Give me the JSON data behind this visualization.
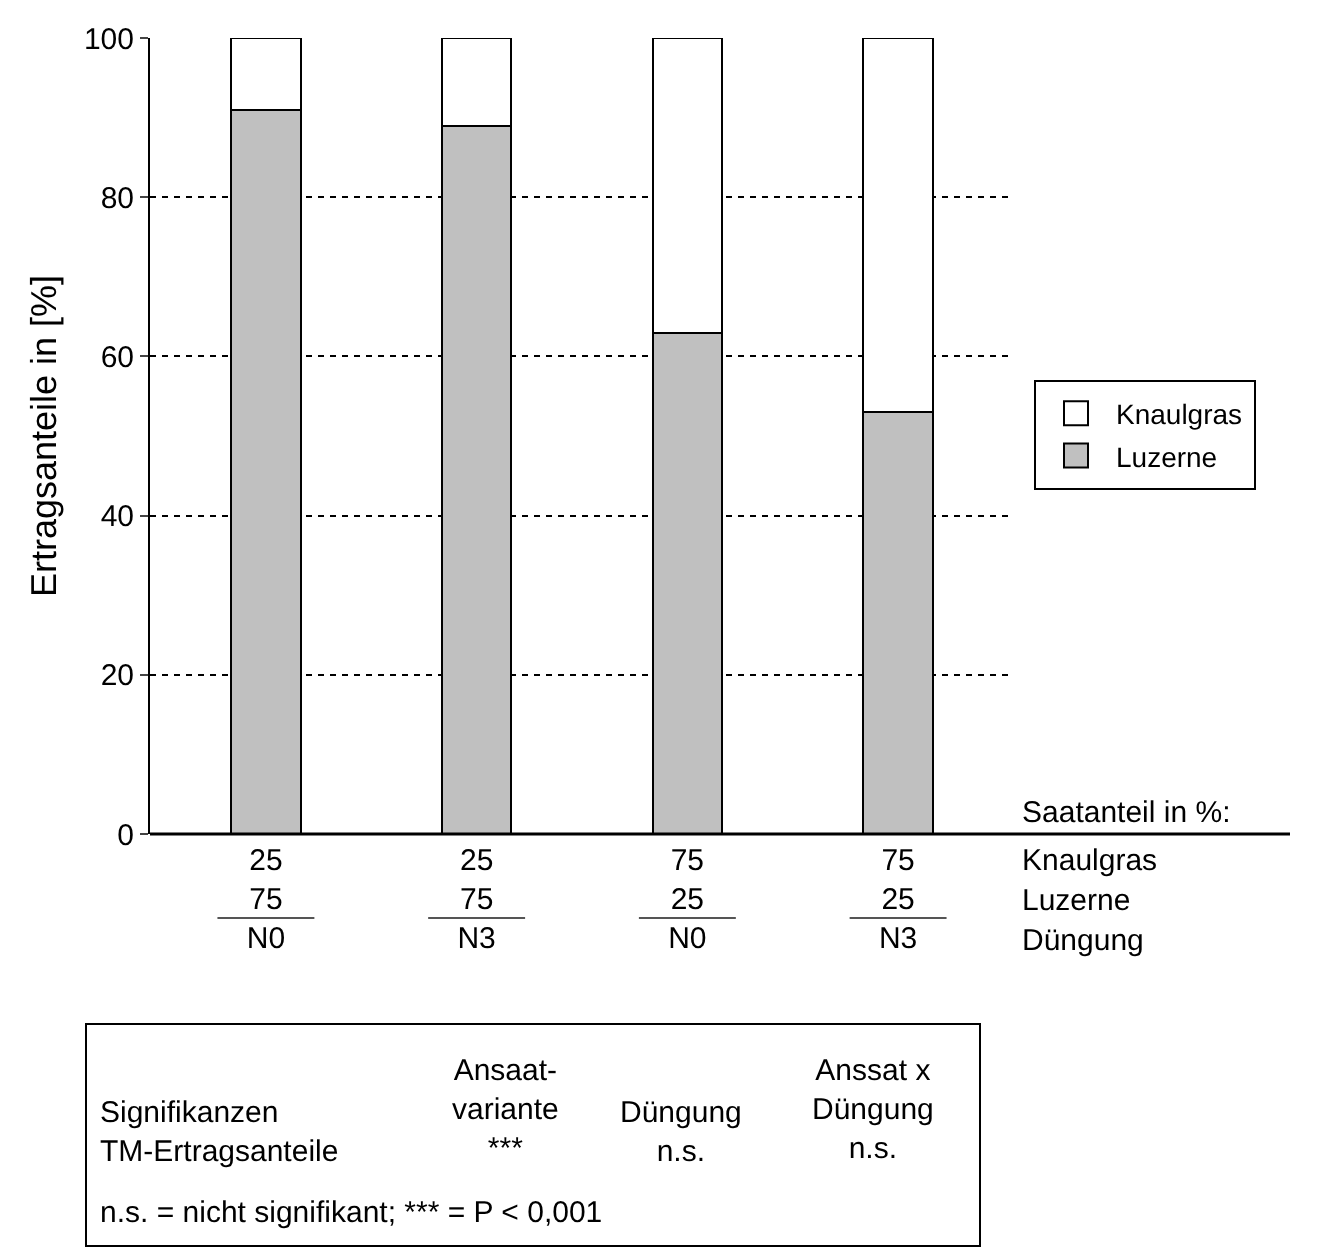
{
  "chart_data": {
    "type": "bar",
    "stacked": true,
    "ylabel": "Ertragsanteile in [%]",
    "categories": [
      "25\n75\nN0",
      "25\n75\nN3",
      "75\n25\nN0",
      "75\n25\nN3"
    ],
    "series": [
      {
        "name": "Luzerne",
        "color": "#c0c0c0",
        "values": [
          91,
          89,
          63,
          53
        ]
      },
      {
        "name": "Knaulgras",
        "color": "#ffffff",
        "values": [
          9,
          11,
          37,
          47
        ]
      }
    ],
    "ylim": [
      0,
      100
    ],
    "yticks": [
      0,
      20,
      40,
      60,
      80,
      100
    ],
    "grid": "y",
    "legend": "right",
    "annotations": [
      "Saatanteil in %:",
      "Knaulgras",
      "Luzerne",
      "Düngung",
      "Signifikanzen\nTM-Ertragsanteile",
      "Ansaat-\nvariante\n***",
      "Düngung\nn.s.",
      "Anssat x\nDüngung\nn.s.",
      "n.s. = nicht signifikant; *** = P < 0,001"
    ]
  }
}
